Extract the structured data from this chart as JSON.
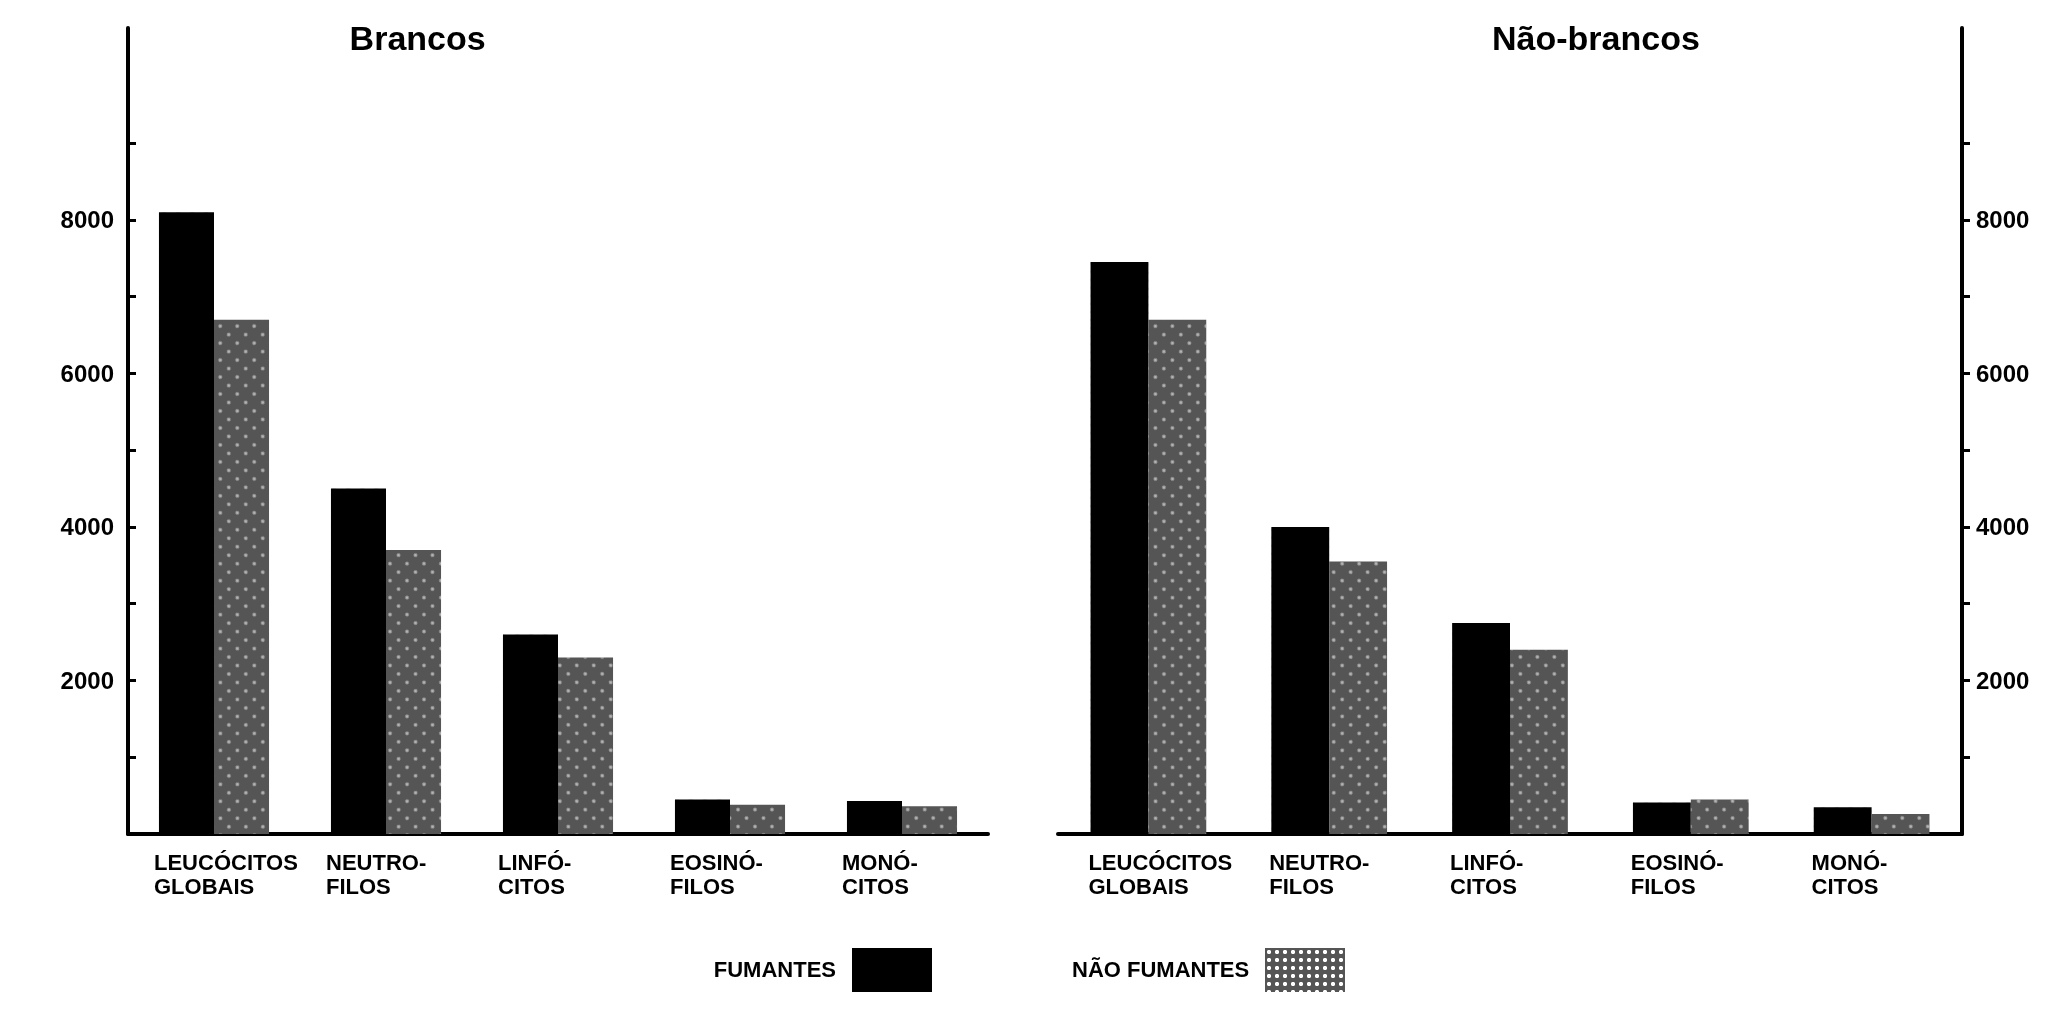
{
  "chart_data": [
    {
      "type": "bar",
      "title": "Brancos",
      "categories": [
        "LEUCÓCITOS\nGLOBAIS",
        "NEUTRO-\nFILOS",
        "LINFÓ-\nCITOS",
        "EOSINÓ-\nFILOS",
        "MONÓ-\nCITOS"
      ],
      "series": [
        {
          "name": "FUMANTES",
          "color": "#000000",
          "values": [
            8100,
            4500,
            2600,
            450,
            430
          ]
        },
        {
          "name": "NÃO FUMANTES",
          "color": "#555555",
          "values": [
            6700,
            3700,
            2300,
            380,
            360
          ]
        }
      ],
      "ylim": [
        0,
        10500
      ],
      "yticks": [
        {
          "value": 1000,
          "label": null
        },
        2000,
        {
          "value": 3000,
          "label": null
        },
        4000,
        {
          "value": 5000,
          "label": null
        },
        6000,
        {
          "value": 7000,
          "label": null
        },
        8000,
        {
          "value": 9000,
          "label": null
        }
      ],
      "grid": false,
      "legend": "bottom"
    },
    {
      "type": "bar",
      "title": "Não-brancos",
      "categories": [
        "LEUCÓCITOS\nGLOBAIS",
        "NEUTRO-\nFILOS",
        "LINFÓ-\nCITOS",
        "EOSINÓ-\nFILOS",
        "MONÓ-\nCITOS"
      ],
      "series": [
        {
          "name": "FUMANTES",
          "color": "#000000",
          "axis": "y2",
          "values": [
            7450,
            4000,
            2750,
            410,
            350
          ]
        },
        {
          "name": "NÃO FUMANTES",
          "color": "#555555",
          "axis": "y2",
          "values": [
            6700,
            3550,
            2400,
            450,
            260
          ]
        }
      ],
      "y2lim": [
        0,
        10500
      ],
      "y2ticks": [
        {
          "value": 1000,
          "label": null
        },
        2000,
        {
          "value": 3000,
          "label": null
        },
        4000,
        {
          "value": 5000,
          "label": null
        },
        6000,
        {
          "value": 7000,
          "label": null
        },
        8000,
        {
          "value": 9000,
          "label": null
        }
      ],
      "grid": false
    }
  ]
}
